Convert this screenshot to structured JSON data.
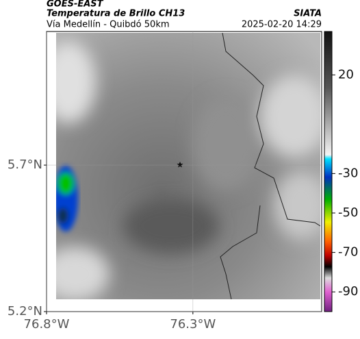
{
  "header": {
    "source": "GOES-EAST",
    "title": "Temperatura de Brillo CH13",
    "subtitle": "Vía Medellín - Quibdó 50km",
    "credit": "SIATA",
    "timestamp": "2025-02-20 14:29"
  },
  "map": {
    "xlim": [
      -76.8,
      -75.86
    ],
    "ylim": [
      5.2,
      6.156
    ],
    "xticks": [
      {
        "value": -76.8,
        "label": "76.8°W"
      },
      {
        "value": -76.3,
        "label": "76.3°W"
      }
    ],
    "yticks": [
      {
        "value": 5.2,
        "label": "5.2°N"
      },
      {
        "value": 5.7,
        "label": "5.7°N"
      }
    ],
    "grid": true
  },
  "colorbar": {
    "lim": [
      -100,
      42
    ],
    "ticks": [
      20,
      -30,
      -50,
      -70,
      -90
    ]
  }
}
